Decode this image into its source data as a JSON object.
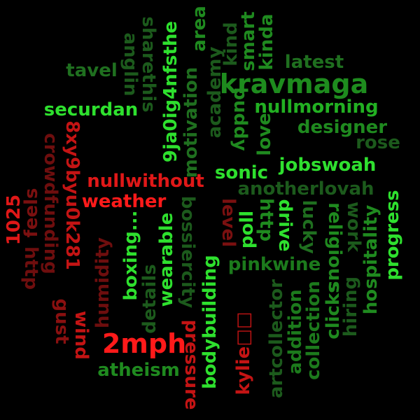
{
  "word_cloud": {
    "words": [
      {
        "text": "kravmaga",
        "color": "#1e8c1e"
      },
      {
        "text": "latest",
        "color": "#1f6f1f"
      },
      {
        "text": "tavel",
        "color": "#1f6f1f"
      },
      {
        "text": "securdan",
        "color": "#2ee02e"
      },
      {
        "text": "nullmorning",
        "color": "#22b022"
      },
      {
        "text": "designer",
        "color": "#1f8a1f"
      },
      {
        "text": "rose",
        "color": "#1c5a1c"
      },
      {
        "text": "jobswoah",
        "color": "#2fe02f"
      },
      {
        "text": "sonic",
        "color": "#2ee02e"
      },
      {
        "text": "anotherlovah",
        "color": "#1c5a1c"
      },
      {
        "text": "nullwithout",
        "color": "#e01818"
      },
      {
        "text": "weather",
        "color": "#ff1a1a"
      },
      {
        "text": "pinkwine",
        "color": "#1c7a1c"
      },
      {
        "text": "atheism",
        "color": "#1f8a1f"
      },
      {
        "text": "2mph",
        "color": "#ff1a1a"
      },
      {
        "text": "kylie□□",
        "color": "#c41414"
      },
      {
        "text": "sharethis",
        "color": "#1c5a1c"
      },
      {
        "text": "anglin",
        "color": "#1c5a1c"
      },
      {
        "text": "9ja0ig4nfsthe",
        "color": "#2ee02e"
      },
      {
        "text": "motivation",
        "color": "#1f6f1f"
      },
      {
        "text": "area",
        "color": "#1f8a1f"
      },
      {
        "text": "academy",
        "color": "#1c5a1c"
      },
      {
        "text": "kind",
        "color": "#1c5a1c"
      },
      {
        "text": "smart",
        "color": "#1f8a1f"
      },
      {
        "text": "kinda",
        "color": "#1f8a1f"
      },
      {
        "text": "buddy",
        "color": "#1f8a1f"
      },
      {
        "text": "love",
        "color": "#1f8a1f"
      },
      {
        "text": "8xy9byu0k281",
        "color": "#c41414"
      },
      {
        "text": "crowdfunding",
        "color": "#6e0e0e"
      },
      {
        "text": "1025",
        "color": "#e01818"
      },
      {
        "text": "feels",
        "color": "#7a1010"
      },
      {
        "text": "http",
        "color": "#6e0e0e"
      },
      {
        "text": "humidity",
        "color": "#6e0e0e"
      },
      {
        "text": "gust",
        "color": "#8a1010"
      },
      {
        "text": "wind",
        "color": "#c41414"
      },
      {
        "text": "boxing...",
        "color": "#2ee02e"
      },
      {
        "text": "details",
        "color": "#1c5a1c"
      },
      {
        "text": "wearable",
        "color": "#2ee02e"
      },
      {
        "text": "bossiercity",
        "color": "#1c5a1c"
      },
      {
        "text": "pressure",
        "color": "#c41414"
      },
      {
        "text": "bodybuilding",
        "color": "#2ee02e"
      },
      {
        "text": "level",
        "color": "#7a1010"
      },
      {
        "text": "poll",
        "color": "#2ee02e"
      },
      {
        "text": "http",
        "color": "#1f8a1f"
      },
      {
        "text": "drive",
        "color": "#2ee02e"
      },
      {
        "text": "lucky",
        "color": "#1f6f1f"
      },
      {
        "text": "religious",
        "color": "#1f8a1f"
      },
      {
        "text": "work",
        "color": "#1c5a1c"
      },
      {
        "text": "progress",
        "color": "#2ee02e"
      },
      {
        "text": "hospitality",
        "color": "#1f8a1f"
      },
      {
        "text": "hiring",
        "color": "#1c5a1c"
      },
      {
        "text": "clicks",
        "color": "#1f8a1f"
      },
      {
        "text": "collection",
        "color": "#1c7a1c"
      },
      {
        "text": "addition",
        "color": "#1c7a1c"
      },
      {
        "text": "artcollector",
        "color": "#1c5a1c"
      }
    ]
  }
}
